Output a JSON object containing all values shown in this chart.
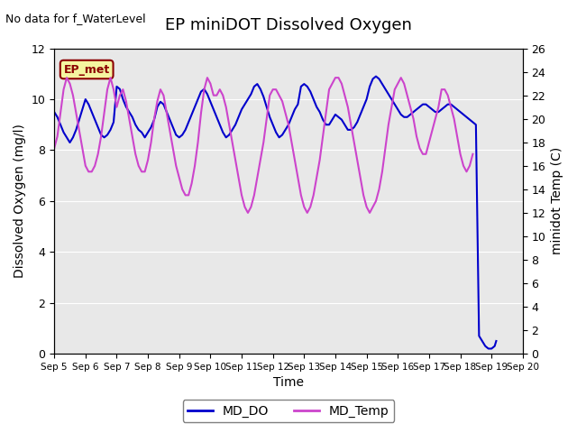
{
  "title": "EP miniDOT Dissolved Oxygen",
  "xlabel": "Time",
  "ylabel_left": "Dissolved Oxygen (mg/l)",
  "ylabel_right": "minidot Temp (C)",
  "ylim_left": [
    0,
    12
  ],
  "ylim_right": [
    0,
    26
  ],
  "no_data_text": "No data for f_WaterLevel",
  "ep_met_label": "EP_met",
  "legend_entries": [
    "MD_DO",
    "MD_Temp"
  ],
  "line_colors": {
    "MD_DO": "#0000cc",
    "MD_Temp": "#cc44cc"
  },
  "background_color": "#e8e8e8",
  "MD_DO": {
    "x": [
      0,
      0.1,
      0.2,
      0.3,
      0.4,
      0.5,
      0.6,
      0.7,
      0.8,
      0.9,
      1.0,
      1.1,
      1.2,
      1.3,
      1.4,
      1.5,
      1.6,
      1.7,
      1.8,
      1.9,
      2.0,
      2.1,
      2.2,
      2.3,
      2.4,
      2.5,
      2.6,
      2.7,
      2.8,
      2.9,
      3.0,
      3.1,
      3.2,
      3.3,
      3.4,
      3.5,
      3.6,
      3.7,
      3.8,
      3.9,
      4.0,
      4.1,
      4.2,
      4.3,
      4.4,
      4.5,
      4.6,
      4.7,
      4.8,
      4.9,
      5.0,
      5.1,
      5.2,
      5.3,
      5.4,
      5.5,
      5.6,
      5.7,
      5.8,
      5.9,
      6.0,
      6.1,
      6.2,
      6.3,
      6.4,
      6.5,
      6.6,
      6.7,
      6.8,
      6.9,
      7.0,
      7.1,
      7.2,
      7.3,
      7.4,
      7.5,
      7.6,
      7.7,
      7.8,
      7.9,
      8.0,
      8.1,
      8.2,
      8.3,
      8.4,
      8.5,
      8.6,
      8.7,
      8.8,
      8.9,
      9.0,
      9.1,
      9.2,
      9.3,
      9.4,
      9.5,
      9.6,
      9.7,
      9.8,
      9.9,
      10.0,
      10.1,
      10.2,
      10.3,
      10.4,
      10.5,
      10.6,
      10.7,
      10.8,
      10.9,
      11.0,
      11.1,
      11.2,
      11.3,
      11.4,
      11.5,
      11.6,
      11.7,
      11.8,
      11.9,
      12.0,
      12.1,
      12.2,
      12.3,
      12.4,
      12.5,
      12.6,
      12.7,
      12.8,
      12.9,
      13.0,
      13.1,
      13.2,
      13.3,
      13.4,
      13.5,
      13.6,
      13.7,
      13.8,
      13.9,
      14.0,
      14.1,
      14.15
    ],
    "y": [
      9.5,
      9.3,
      9.0,
      8.7,
      8.5,
      8.3,
      8.5,
      8.8,
      9.2,
      9.6,
      10.0,
      9.8,
      9.5,
      9.2,
      8.9,
      8.6,
      8.5,
      8.6,
      8.8,
      9.1,
      10.5,
      10.4,
      10.0,
      9.7,
      9.5,
      9.3,
      9.0,
      8.8,
      8.7,
      8.5,
      8.7,
      8.9,
      9.2,
      9.7,
      9.9,
      9.8,
      9.5,
      9.2,
      8.9,
      8.6,
      8.5,
      8.6,
      8.8,
      9.1,
      9.4,
      9.7,
      10.0,
      10.3,
      10.4,
      10.2,
      9.9,
      9.6,
      9.3,
      9.0,
      8.7,
      8.5,
      8.6,
      8.8,
      9.0,
      9.3,
      9.6,
      9.8,
      10.0,
      10.2,
      10.5,
      10.6,
      10.4,
      10.1,
      9.7,
      9.3,
      9.0,
      8.7,
      8.5,
      8.6,
      8.8,
      9.0,
      9.3,
      9.6,
      9.8,
      10.5,
      10.6,
      10.5,
      10.3,
      10.0,
      9.7,
      9.5,
      9.2,
      9.0,
      9.0,
      9.2,
      9.4,
      9.3,
      9.2,
      9.0,
      8.8,
      8.8,
      8.9,
      9.1,
      9.4,
      9.7,
      10.0,
      10.5,
      10.8,
      10.9,
      10.8,
      10.6,
      10.4,
      10.2,
      10.0,
      9.8,
      9.6,
      9.4,
      9.3,
      9.3,
      9.4,
      9.5,
      9.6,
      9.7,
      9.8,
      9.8,
      9.7,
      9.6,
      9.5,
      9.5,
      9.6,
      9.7,
      9.8,
      9.8,
      9.7,
      9.6,
      9.5,
      9.4,
      9.3,
      9.2,
      9.1,
      9.0,
      0.7,
      0.5,
      0.3,
      0.2,
      0.2,
      0.3,
      0.5
    ]
  },
  "MD_Temp": {
    "x": [
      0,
      0.1,
      0.2,
      0.3,
      0.4,
      0.5,
      0.6,
      0.7,
      0.8,
      0.9,
      1.0,
      1.1,
      1.2,
      1.3,
      1.4,
      1.5,
      1.6,
      1.7,
      1.8,
      1.9,
      2.0,
      2.1,
      2.2,
      2.3,
      2.4,
      2.5,
      2.6,
      2.7,
      2.8,
      2.9,
      3.0,
      3.1,
      3.2,
      3.3,
      3.4,
      3.5,
      3.6,
      3.7,
      3.8,
      3.9,
      4.0,
      4.1,
      4.2,
      4.3,
      4.4,
      4.5,
      4.6,
      4.7,
      4.8,
      4.9,
      5.0,
      5.1,
      5.2,
      5.3,
      5.4,
      5.5,
      5.6,
      5.7,
      5.8,
      5.9,
      6.0,
      6.1,
      6.2,
      6.3,
      6.4,
      6.5,
      6.6,
      6.7,
      6.8,
      6.9,
      7.0,
      7.1,
      7.2,
      7.3,
      7.4,
      7.5,
      7.6,
      7.7,
      7.8,
      7.9,
      8.0,
      8.1,
      8.2,
      8.3,
      8.4,
      8.5,
      8.6,
      8.7,
      8.8,
      8.9,
      9.0,
      9.1,
      9.2,
      9.3,
      9.4,
      9.5,
      9.6,
      9.7,
      9.8,
      9.9,
      10.0,
      10.1,
      10.2,
      10.3,
      10.4,
      10.5,
      10.6,
      10.7,
      10.8,
      10.9,
      11.0,
      11.1,
      11.2,
      11.3,
      11.4,
      11.5,
      11.6,
      11.7,
      11.8,
      11.9,
      12.0,
      12.1,
      12.2,
      12.3,
      12.4,
      12.5,
      12.6,
      12.7,
      12.8,
      12.9,
      13.0,
      13.1,
      13.2,
      13.3,
      13.4
    ],
    "y": [
      17.5,
      18.5,
      20.5,
      22.5,
      23.5,
      23.0,
      22.0,
      20.5,
      19.0,
      17.5,
      16.0,
      15.5,
      15.5,
      16.0,
      17.0,
      18.5,
      20.5,
      22.5,
      23.5,
      22.5,
      21.0,
      22.0,
      22.5,
      21.5,
      20.0,
      18.5,
      17.0,
      16.0,
      15.5,
      15.5,
      16.5,
      18.0,
      20.0,
      21.5,
      22.5,
      22.0,
      20.5,
      19.0,
      17.5,
      16.0,
      15.0,
      14.0,
      13.5,
      13.5,
      14.5,
      16.0,
      18.0,
      20.5,
      22.5,
      23.5,
      23.0,
      22.0,
      22.0,
      22.5,
      22.0,
      21.0,
      19.5,
      18.0,
      16.5,
      15.0,
      13.5,
      12.5,
      12.0,
      12.5,
      13.5,
      15.0,
      16.5,
      18.0,
      20.0,
      22.0,
      22.5,
      22.5,
      22.0,
      21.5,
      20.5,
      19.5,
      18.0,
      16.5,
      15.0,
      13.5,
      12.5,
      12.0,
      12.5,
      13.5,
      15.0,
      16.5,
      18.5,
      20.5,
      22.5,
      23.0,
      23.5,
      23.5,
      23.0,
      22.0,
      21.0,
      19.5,
      18.0,
      16.5,
      15.0,
      13.5,
      12.5,
      12.0,
      12.5,
      13.0,
      14.0,
      15.5,
      17.5,
      19.5,
      21.0,
      22.5,
      23.0,
      23.5,
      23.0,
      22.0,
      21.0,
      20.0,
      18.5,
      17.5,
      17.0,
      17.0,
      18.0,
      19.0,
      20.0,
      21.0,
      22.5,
      22.5,
      22.0,
      21.0,
      20.0,
      18.5,
      17.0,
      16.0,
      15.5,
      16.0,
      17.0
    ]
  },
  "x_tick_labels": [
    "Sep 5",
    "Sep 6",
    "Sep 7",
    "Sep 8",
    "Sep 9",
    "Sep 10",
    "Sep 11",
    "Sep 12",
    "Sep 13",
    "Sep 14",
    "Sep 15",
    "Sep 16",
    "Sep 17",
    "Sep 18",
    "Sep 19",
    "Sep 20"
  ],
  "x_tick_positions": [
    0,
    1,
    2,
    3,
    4,
    5,
    6,
    7,
    8,
    9,
    10,
    11,
    12,
    13,
    14,
    15
  ]
}
